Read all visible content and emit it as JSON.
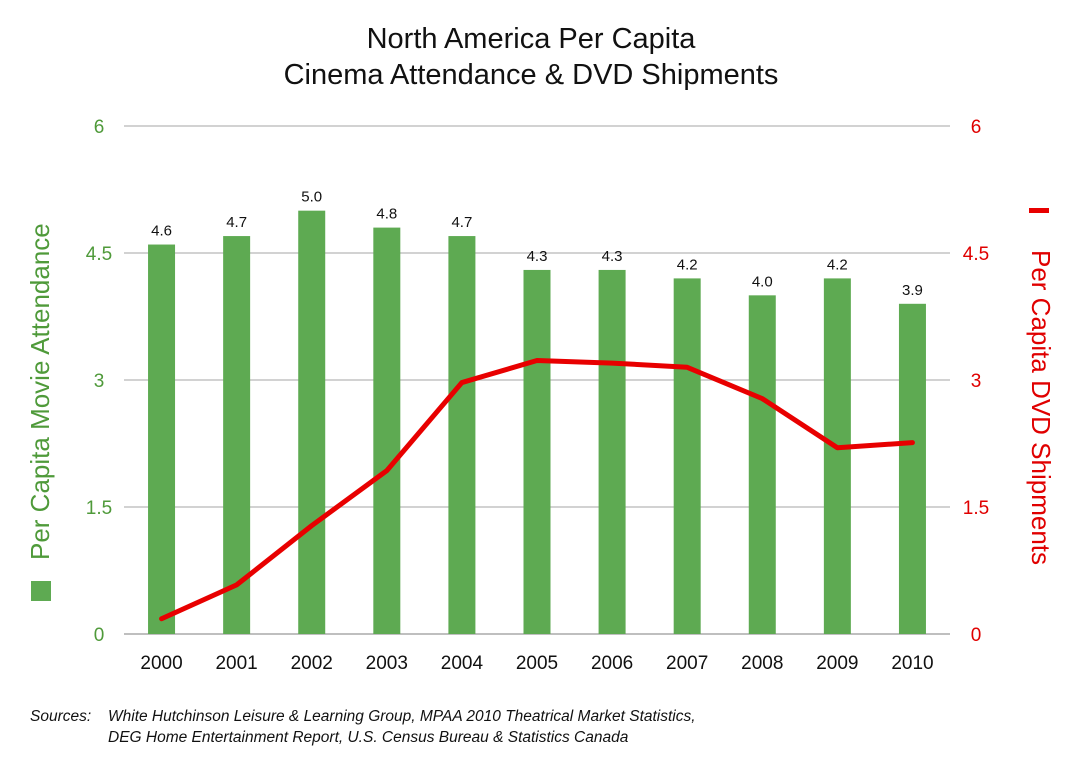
{
  "chart_data": {
    "type": "bar+line",
    "title": [
      "North America Per Capita",
      "Cinema Attendance & DVD Shipments"
    ],
    "categories": [
      "2000",
      "2001",
      "2002",
      "2003",
      "2004",
      "2005",
      "2006",
      "2007",
      "2008",
      "2009",
      "2010"
    ],
    "series": [
      {
        "name": "Per Capita Movie Attendance",
        "type": "bar",
        "axis": "left",
        "values": [
          4.6,
          4.7,
          5.0,
          4.8,
          4.7,
          4.3,
          4.3,
          4.2,
          4.0,
          4.2,
          3.9
        ],
        "labels": [
          "4.6",
          "4.7",
          "5.0",
          "4.8",
          "4.7",
          "4.3",
          "4.3",
          "4.2",
          "4.0",
          "4.2",
          "3.9"
        ],
        "color": "#5eaa52"
      },
      {
        "name": "Per Capita DVD Shipments",
        "type": "line",
        "axis": "right",
        "values": [
          0.18,
          0.58,
          1.28,
          1.93,
          2.97,
          3.23,
          3.2,
          3.15,
          2.78,
          2.2,
          2.26
        ],
        "color": "#e80000"
      }
    ],
    "y_left": {
      "label": "Per Capita Movie Attendance",
      "ylim": [
        0,
        6
      ],
      "ticks": [
        "0",
        "1.5",
        "3",
        "4.5",
        "6"
      ],
      "color": "#4f9a3a"
    },
    "y_right": {
      "label": "Per Capita DVD Shipments",
      "ylim": [
        0,
        6
      ],
      "ticks": [
        "0",
        "1.5",
        "3",
        "4.5",
        "6"
      ],
      "color": "#e00000"
    },
    "grid": true
  },
  "sources": {
    "label": "Sources:",
    "line1": "White Hutchinson Leisure & Learning Group, MPAA  2010 Theatrical Market Statistics,",
    "line2": "DEG Home Entertainment Report, U.S. Census Bureau & Statistics Canada"
  }
}
